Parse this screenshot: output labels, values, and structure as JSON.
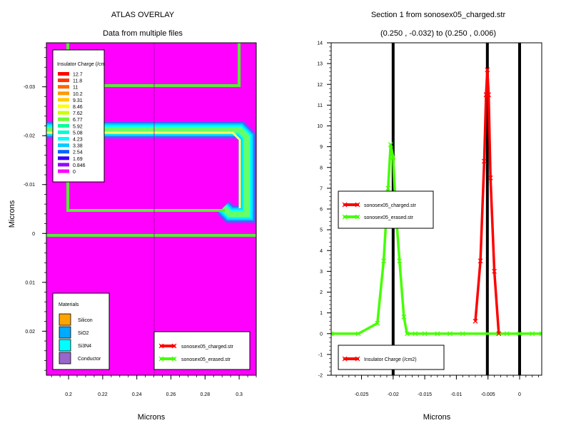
{
  "left_panel": {
    "title": "ATLAS OVERLAY",
    "subtitle": "Data from multiple files",
    "xlabel": "Microns",
    "ylabel": "Microns",
    "xticks": [
      "0.2",
      "0.22",
      "0.24",
      "0.26",
      "0.28",
      "0.3"
    ],
    "yticks": [
      "-0.03",
      "-0.02",
      "-0.01",
      "0",
      "0.01",
      "0.02"
    ],
    "colorbar": {
      "title": "Insulator Charge (/cm",
      "levels": [
        "12.7",
        "11.8",
        "11",
        "10.2",
        "9.31",
        "8.46",
        "7.62",
        "6.77",
        "5.92",
        "5.08",
        "4.23",
        "3.38",
        "2.54",
        "1.69",
        "0.846",
        "0"
      ],
      "colors": [
        "#ff0000",
        "#ff3300",
        "#ff6600",
        "#ff9900",
        "#ffcc00",
        "#ffff00",
        "#ccff00",
        "#66ff33",
        "#00ff99",
        "#00ffcc",
        "#00ffff",
        "#00ccff",
        "#0066ff",
        "#3300ff",
        "#9900ff",
        "#ff00ff"
      ]
    },
    "materials": {
      "title": "Materials",
      "items": [
        {
          "label": "Silicon",
          "color": "#ffa500"
        },
        {
          "label": "SiO2",
          "color": "#00aaff"
        },
        {
          "label": "Si3N4",
          "color": "#00ffff"
        },
        {
          "label": "Conductor",
          "color": "#9966cc"
        }
      ]
    },
    "legend": [
      {
        "label": "sonosex05_charged.str",
        "color": "#ff0000"
      },
      {
        "label": "sonosex05_erased.str",
        "color": "#44ff00"
      }
    ]
  },
  "chart_data": [
    {
      "type": "heatmap",
      "title": "ATLAS OVERLAY",
      "subtitle": "Data from multiple files",
      "xlabel": "Microns",
      "ylabel": "Microns",
      "xlim": [
        0.187,
        0.31
      ],
      "ylim": [
        0.029,
        -0.039
      ],
      "y_inverted": true,
      "colorbar_title": "Insulator Charge (/cm",
      "colorbar_levels": [
        12.7,
        11.8,
        11,
        10.2,
        9.31,
        8.46,
        7.62,
        6.77,
        5.92,
        5.08,
        4.23,
        3.38,
        2.54,
        1.69,
        0.846,
        0
      ],
      "materials": [
        "Silicon",
        "SiO2",
        "Si3N4",
        "Conductor"
      ],
      "series": [
        "sonosex05_charged.str",
        "sonosex05_erased.str"
      ]
    },
    {
      "type": "line",
      "title": "Section 1 from sonosex05_charged.str",
      "subtitle": "(0.250 , -0.032) to (0.250 , 0.006)",
      "xlabel": "Microns",
      "ylabel": "",
      "xlim": [
        -0.0298,
        0.0035
      ],
      "ylim": [
        -2,
        14
      ],
      "xticks": [
        "-0.025",
        "-0.02",
        "-0.015",
        "-0.01",
        "-0.005",
        "0"
      ],
      "yticks": [
        "-2",
        "-1",
        "0",
        "1",
        "2",
        "3",
        "4",
        "5",
        "6",
        "7",
        "8",
        "9",
        "10",
        "11",
        "12",
        "13",
        "14"
      ],
      "vlines": [
        -0.02,
        -0.0051,
        0
      ],
      "series": [
        {
          "name": "sonosex05_charged.str",
          "color": "#ff0000",
          "x": [
            -0.007,
            -0.0062,
            -0.0056,
            -0.0053,
            -0.0051,
            -0.0049,
            -0.0046,
            -0.004,
            -0.0033
          ],
          "y": [
            0.6,
            3.5,
            8.3,
            11.5,
            12.7,
            11.5,
            7.5,
            3.0,
            0
          ]
        },
        {
          "name": "sonosex05_erased.str",
          "color": "#44ff00",
          "x": [
            -0.0298,
            -0.0255,
            -0.0225,
            -0.0215,
            -0.0208,
            -0.0204,
            -0.02,
            -0.0196,
            -0.019,
            -0.0183,
            -0.0178,
            -0.0165,
            -0.015,
            -0.013,
            -0.011,
            -0.009,
            -0.0033,
            -0.002,
            0.0,
            0.002,
            0.0035
          ],
          "y": [
            0,
            0,
            0.5,
            3.5,
            7.0,
            9.1,
            8.5,
            6.0,
            3.5,
            0.8,
            0,
            0,
            0,
            0,
            0,
            0,
            0,
            0,
            0,
            0,
            0
          ]
        }
      ],
      "legend": [
        "sonosex05_charged.str",
        "sonosex05_erased.str"
      ],
      "legend2": [
        "Insulator Charge (/cm2)"
      ]
    }
  ]
}
